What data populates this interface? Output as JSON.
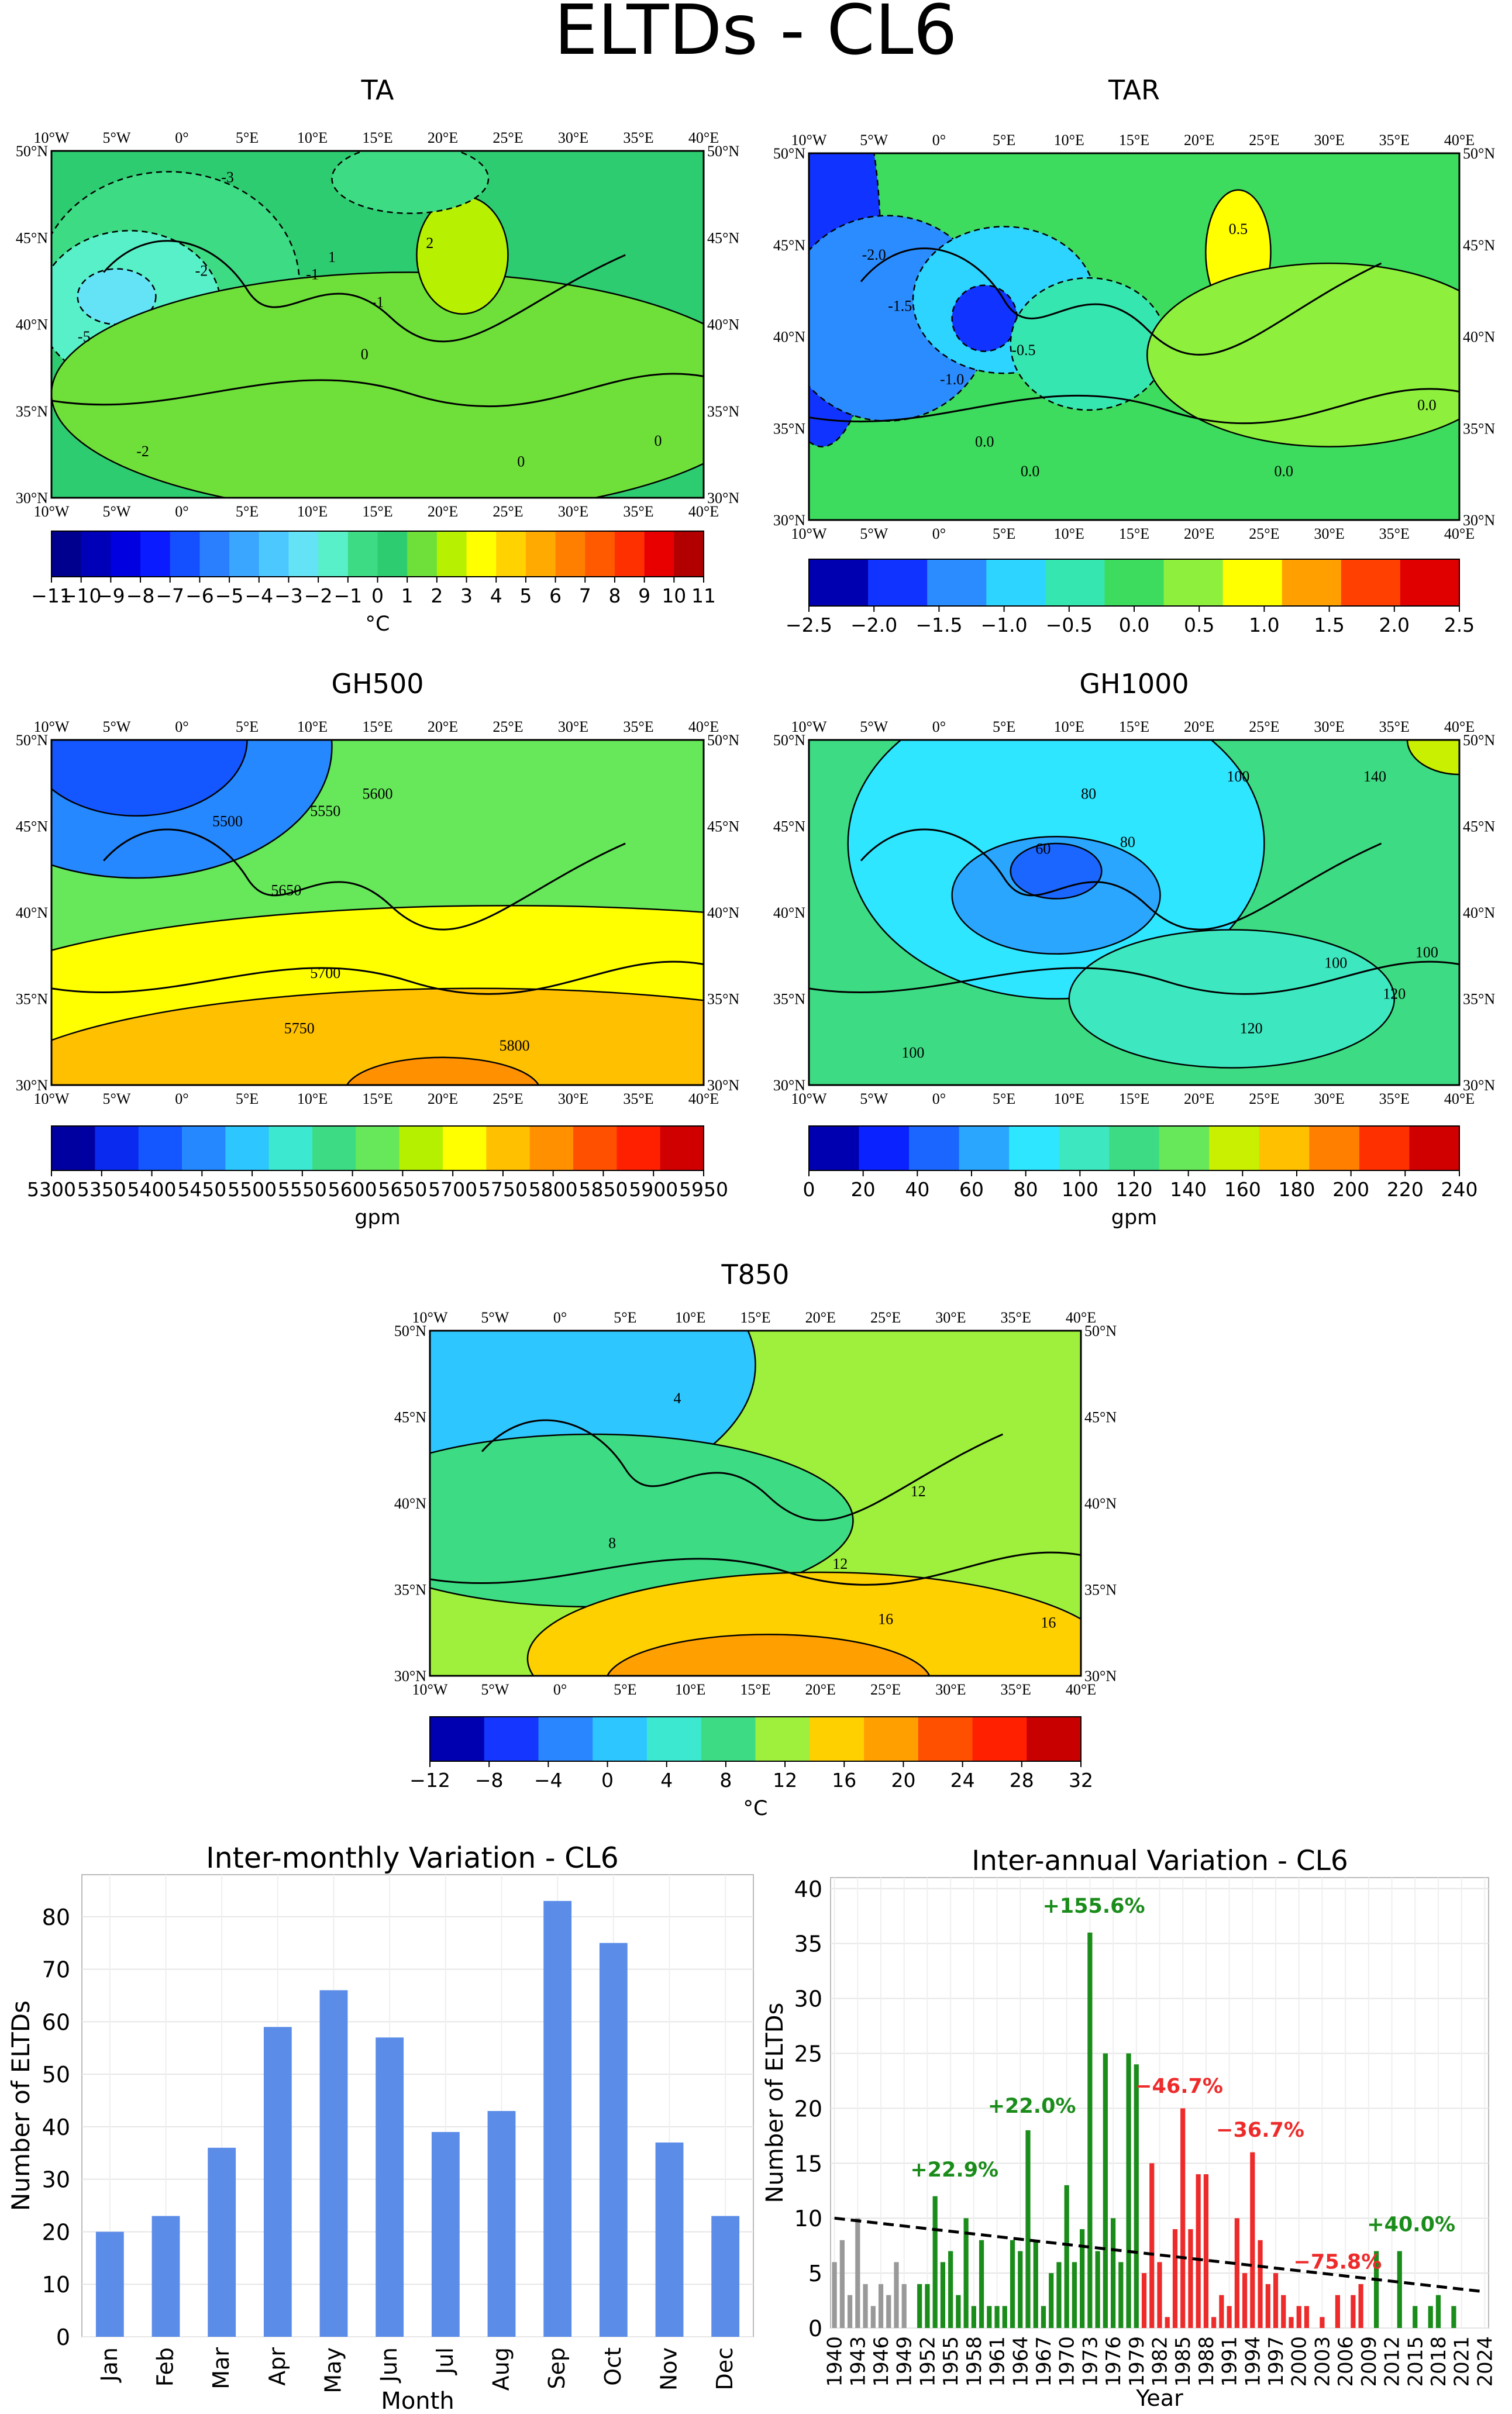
{
  "figure_title": "ELTDs - CL6",
  "chart_data": [
    {
      "type": "heatmap",
      "id": "TA",
      "title": "TA",
      "lon_ticks": [
        "10°W",
        "5°W",
        "0°",
        "5°E",
        "10°E",
        "15°E",
        "20°E",
        "25°E",
        "30°E",
        "35°E",
        "40°E"
      ],
      "lat_ticks": [
        "50°N",
        "45°N",
        "40°N",
        "35°N",
        "30°N"
      ],
      "contour_labels": [
        "-3",
        "-2",
        "-1",
        "-2",
        "0",
        "1",
        "2",
        "-5",
        "0",
        "-1",
        "0"
      ],
      "colorbar": {
        "ticks": [
          "−11",
          "−10",
          "−9",
          "−8",
          "−7",
          "−6",
          "−5",
          "−4",
          "−3",
          "−2",
          "−1",
          "0",
          "1",
          "2",
          "3",
          "4",
          "5",
          "6",
          "7",
          "8",
          "9",
          "10",
          "11"
        ],
        "colors": [
          "#00008f",
          "#0000b8",
          "#0000e0",
          "#0a1cff",
          "#1450ff",
          "#2a7fff",
          "#3ba6ff",
          "#4dc8ff",
          "#63e3f5",
          "#58f0c8",
          "#3ddc84",
          "#2ecc71",
          "#6fe03a",
          "#b7f000",
          "#ffff00",
          "#ffd200",
          "#ffaa00",
          "#ff8000",
          "#ff5a00",
          "#ff3000",
          "#e80000",
          "#b20000"
        ],
        "label": "°C"
      }
    },
    {
      "type": "heatmap",
      "id": "TAR",
      "title": "TAR",
      "lon_ticks": [
        "10°W",
        "5°W",
        "0°",
        "5°E",
        "10°E",
        "15°E",
        "20°E",
        "25°E",
        "30°E",
        "35°E",
        "40°E"
      ],
      "lat_ticks": [
        "50°N",
        "45°N",
        "40°N",
        "35°N",
        "30°N"
      ],
      "contour_labels": [
        "-2.0",
        "-1.5",
        "-1.0",
        "-0.5",
        "0.0",
        "0.5",
        "0.0",
        "0.0",
        "0.0"
      ],
      "colorbar": {
        "ticks": [
          "−2.5",
          "−2.0",
          "−1.5",
          "−1.0",
          "−0.5",
          "0.0",
          "0.5",
          "1.0",
          "1.5",
          "2.0",
          "2.5"
        ],
        "colors": [
          "#0000b0",
          "#1133ff",
          "#2b8cff",
          "#2dd4ff",
          "#36e6b0",
          "#3ddb5e",
          "#8ef03c",
          "#ffff00",
          "#ffa000",
          "#ff4000",
          "#e00000"
        ],
        "label": ""
      }
    },
    {
      "type": "heatmap",
      "id": "GH500",
      "title": "GH500",
      "lon_ticks": [
        "10°W",
        "5°W",
        "0°",
        "5°E",
        "10°E",
        "15°E",
        "20°E",
        "25°E",
        "30°E",
        "35°E",
        "40°E"
      ],
      "lat_ticks": [
        "50°N",
        "45°N",
        "40°N",
        "35°N",
        "30°N"
      ],
      "contour_labels": [
        "5500",
        "5550",
        "5600",
        "5650",
        "5700",
        "5750",
        "5800"
      ],
      "colorbar": {
        "ticks": [
          "5300",
          "5350",
          "5400",
          "5450",
          "5500",
          "5550",
          "5600",
          "5650",
          "5700",
          "5750",
          "5800",
          "5850",
          "5900",
          "5950"
        ],
        "colors": [
          "#0000a0",
          "#0a2af0",
          "#1456ff",
          "#2688ff",
          "#2ec6ff",
          "#3de8d0",
          "#3ddc84",
          "#66e85a",
          "#b5f000",
          "#ffff00",
          "#ffc000",
          "#ff9000",
          "#ff5000",
          "#ff2000",
          "#d00000"
        ],
        "label": "gpm"
      }
    },
    {
      "type": "heatmap",
      "id": "GH1000",
      "title": "GH1000",
      "lon_ticks": [
        "10°W",
        "5°W",
        "0°",
        "5°E",
        "10°E",
        "15°E",
        "20°E",
        "25°E",
        "30°E",
        "35°E",
        "40°E"
      ],
      "lat_ticks": [
        "50°N",
        "45°N",
        "40°N",
        "35°N",
        "30°N"
      ],
      "contour_labels": [
        "60",
        "80",
        "80",
        "100",
        "100",
        "120",
        "120",
        "140",
        "100",
        "100"
      ],
      "colorbar": {
        "ticks": [
          "0",
          "20",
          "40",
          "60",
          "80",
          "100",
          "120",
          "140",
          "160",
          "180",
          "200",
          "220",
          "240"
        ],
        "colors": [
          "#0000b0",
          "#0a22ff",
          "#1a66ff",
          "#2aa6ff",
          "#2ee6ff",
          "#3de8c0",
          "#3ddc84",
          "#66e85a",
          "#c8f000",
          "#ffc000",
          "#ff8000",
          "#ff3000",
          "#d00000"
        ],
        "label": "gpm"
      }
    },
    {
      "type": "heatmap",
      "id": "T850",
      "title": "T850",
      "lon_ticks": [
        "10°W",
        "5°W",
        "0°",
        "5°E",
        "10°E",
        "15°E",
        "20°E",
        "25°E",
        "30°E",
        "35°E",
        "40°E"
      ],
      "lat_ticks": [
        "50°N",
        "45°N",
        "40°N",
        "35°N",
        "30°N"
      ],
      "contour_labels": [
        "4",
        "8",
        "12",
        "12",
        "16",
        "16"
      ],
      "colorbar": {
        "ticks": [
          "−12",
          "−8",
          "−4",
          "0",
          "4",
          "8",
          "12",
          "16",
          "20",
          "24",
          "28",
          "32"
        ],
        "colors": [
          "#0000b0",
          "#1436ff",
          "#2a86ff",
          "#2ec6ff",
          "#3de8d0",
          "#3ddc84",
          "#9ef03c",
          "#ffd000",
          "#ffa000",
          "#ff5000",
          "#ff2000",
          "#c80000"
        ],
        "label": "°C"
      }
    },
    {
      "type": "bar",
      "id": "monthly",
      "title": "Inter-monthly Variation - CL6",
      "categories": [
        "Jan",
        "Feb",
        "Mar",
        "Apr",
        "May",
        "Jun",
        "Jul",
        "Aug",
        "Sep",
        "Oct",
        "Nov",
        "Dec"
      ],
      "values": [
        20,
        23,
        36,
        59,
        66,
        57,
        39,
        43,
        83,
        75,
        37,
        23
      ],
      "xlabel": "Month",
      "ylabel": "Number of ELTDs",
      "ylim": [
        0,
        88
      ],
      "yticks": [
        "0",
        "10",
        "20",
        "30",
        "40",
        "50",
        "60",
        "70",
        "80"
      ],
      "color": "#5b8ce8",
      "grid": true
    },
    {
      "type": "bar",
      "id": "annual",
      "title": "Inter-annual Variation - CL6",
      "x": [
        1940,
        1941,
        1942,
        1943,
        1944,
        1945,
        1946,
        1947,
        1948,
        1949,
        1950,
        1951,
        1952,
        1953,
        1954,
        1955,
        1956,
        1957,
        1958,
        1959,
        1960,
        1961,
        1962,
        1963,
        1964,
        1965,
        1966,
        1967,
        1968,
        1969,
        1970,
        1971,
        1972,
        1973,
        1974,
        1975,
        1976,
        1977,
        1978,
        1979,
        1980,
        1981,
        1982,
        1983,
        1984,
        1985,
        1986,
        1987,
        1988,
        1989,
        1990,
        1991,
        1992,
        1993,
        1994,
        1995,
        1996,
        1997,
        1998,
        1999,
        2000,
        2001,
        2002,
        2003,
        2004,
        2005,
        2006,
        2007,
        2008,
        2009,
        2010,
        2011,
        2012,
        2013,
        2014,
        2015,
        2016,
        2017,
        2018,
        2019,
        2020,
        2021,
        2022,
        2023,
        2024
      ],
      "values": [
        6,
        8,
        3,
        10,
        4,
        2,
        4,
        3,
        6,
        4,
        0,
        4,
        4,
        12,
        6,
        7,
        3,
        10,
        2,
        8,
        2,
        2,
        2,
        8,
        7,
        18,
        8,
        2,
        5,
        6,
        13,
        6,
        9,
        36,
        7,
        25,
        10,
        6,
        25,
        24,
        5,
        15,
        6,
        1,
        9,
        20,
        9,
        14,
        14,
        1,
        3,
        2,
        10,
        5,
        16,
        8,
        4,
        5,
        3,
        1,
        2,
        2,
        0,
        1,
        0,
        3,
        0,
        3,
        4,
        0,
        7,
        0,
        0,
        7,
        0,
        2,
        0,
        2,
        3,
        0,
        2,
        0,
        0,
        0,
        0
      ],
      "period_colors": [
        "#999999",
        "#1a8c1a",
        "#ee2b2b",
        "#1a8c1a"
      ],
      "period_starts": [
        1940,
        1950,
        1980,
        2009
      ],
      "xlabel": "Year",
      "ylabel": "Number of ELTDs",
      "ylim": [
        0,
        41
      ],
      "yticks": [
        "0",
        "5",
        "10",
        "15",
        "20",
        "25",
        "30",
        "35",
        "40"
      ],
      "xticks": [
        "1940",
        "1943",
        "1946",
        "1949",
        "1952",
        "1955",
        "1958",
        "1961",
        "1964",
        "1967",
        "1970",
        "1973",
        "1976",
        "1979",
        "1982",
        "1985",
        "1988",
        "1991",
        "1994",
        "1997",
        "2000",
        "2003",
        "2006",
        "2009",
        "2012",
        "2015",
        "2018",
        "2021",
        "2024"
      ],
      "trend": {
        "start": [
          1940,
          10.0
        ],
        "end": [
          2024,
          3.3
        ]
      },
      "annotations": [
        {
          "text": "+22.9%",
          "x": 1955.5,
          "y": 13.8,
          "color": "#1a8c1a"
        },
        {
          "text": "+22.0%",
          "x": 1965.5,
          "y": 19.6,
          "color": "#1a8c1a"
        },
        {
          "text": "+155.6%",
          "x": 1973.5,
          "y": 37.8,
          "color": "#1a8c1a"
        },
        {
          "text": "−46.7%",
          "x": 1984.5,
          "y": 21.4,
          "color": "#ee2b2b"
        },
        {
          "text": "−36.7%",
          "x": 1995.0,
          "y": 17.4,
          "color": "#ee2b2b"
        },
        {
          "text": "−75.8%",
          "x": 2005.0,
          "y": 5.4,
          "color": "#ee2b2b"
        },
        {
          "text": "+40.0%",
          "x": 2014.5,
          "y": 8.8,
          "color": "#1a8c1a"
        }
      ]
    }
  ]
}
